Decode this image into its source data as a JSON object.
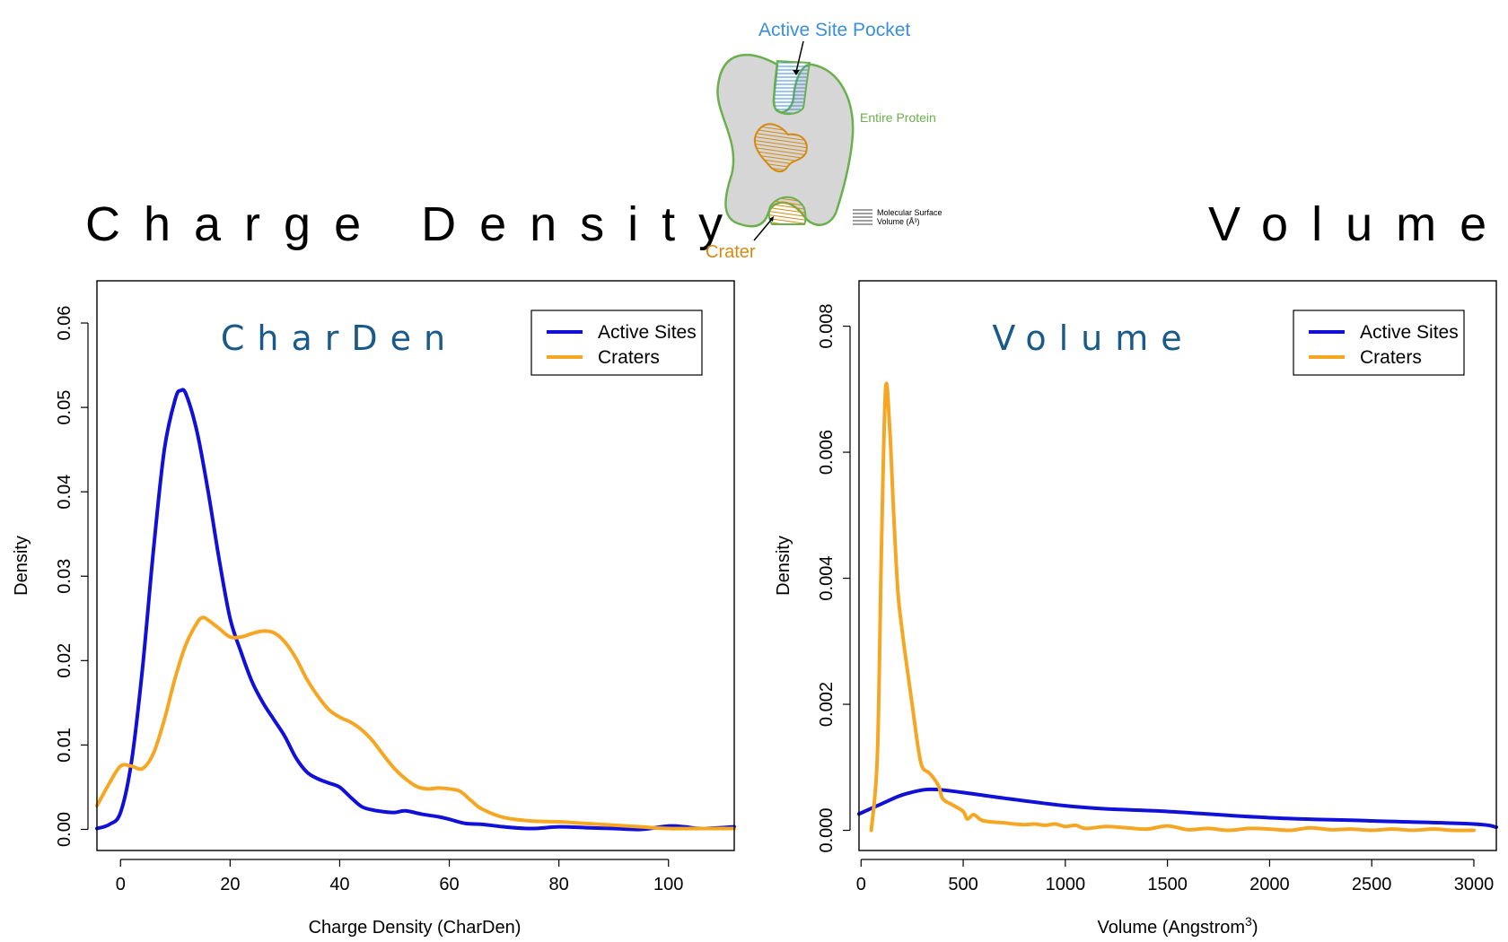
{
  "titles": {
    "left": "Charge Density",
    "right": "Volume"
  },
  "diagram": {
    "active_site_label": "Active Site Pocket",
    "protein_label": "Entire Protein",
    "crater_label": "Crater",
    "key_label_line1": "Molecular Surface",
    "key_label_line2": "Volume (Å³)",
    "colors": {
      "active_site": "#3a8fd8",
      "protein": "#6ab04c",
      "crater": "#d68a10",
      "body": "#d6d6d6"
    }
  },
  "colors": {
    "active_sites": "#1010d8",
    "craters": "#f5a623"
  },
  "chart_data": [
    {
      "type": "line",
      "inset_title": "CharDen",
      "xlabel": "Charge Density (CharDen)",
      "ylabel": "Density",
      "xlim": [
        -4.3,
        112
      ],
      "ylim": [
        -0.0025,
        0.065
      ],
      "xticks": [
        0,
        20,
        40,
        60,
        80,
        100
      ],
      "yticks": [
        0.0,
        0.01,
        0.02,
        0.03,
        0.04,
        0.05,
        0.06
      ],
      "ytick_labels": [
        "0.00",
        "0.01",
        "0.02",
        "0.03",
        "0.04",
        "0.05",
        "0.06"
      ],
      "legend": {
        "position": "top-right",
        "entries": [
          "Active Sites",
          "Craters"
        ]
      },
      "series": [
        {
          "name": "Active Sites",
          "x": [
            -4.3,
            -2,
            0,
            2,
            4,
            6,
            8,
            10,
            11,
            12,
            14,
            16,
            18,
            20,
            22,
            24,
            26,
            28,
            30,
            32,
            34,
            36,
            38,
            40,
            42,
            44,
            46,
            48,
            50,
            52,
            55,
            58,
            60,
            63,
            66,
            70,
            75,
            80,
            85,
            90,
            95,
            100,
            103,
            106,
            112
          ],
          "y": [
            0.0001,
            0.0006,
            0.002,
            0.008,
            0.019,
            0.033,
            0.045,
            0.051,
            0.052,
            0.0515,
            0.047,
            0.04,
            0.032,
            0.025,
            0.021,
            0.0175,
            0.015,
            0.013,
            0.011,
            0.0085,
            0.0068,
            0.006,
            0.0055,
            0.005,
            0.0038,
            0.0027,
            0.0023,
            0.0021,
            0.002,
            0.0022,
            0.0018,
            0.0015,
            0.0012,
            0.0007,
            0.0006,
            0.0003,
            0.0001,
            0.0003,
            0.0002,
            0.0001,
            0.0,
            0.0004,
            0.0003,
            0.0001,
            0.0003
          ]
        },
        {
          "name": "Craters",
          "x": [
            -4.3,
            -2,
            0,
            2,
            4,
            6,
            8,
            10,
            12,
            14,
            15,
            16,
            18,
            20,
            22,
            24,
            26,
            28,
            30,
            32,
            34,
            36,
            38,
            40,
            42,
            44,
            46,
            48,
            50,
            52,
            54,
            56,
            58,
            60,
            62,
            64,
            66,
            70,
            75,
            80,
            85,
            90,
            95,
            100,
            105,
            112
          ],
          "y": [
            0.0028,
            0.0055,
            0.0075,
            0.0075,
            0.0072,
            0.009,
            0.013,
            0.018,
            0.022,
            0.0245,
            0.0251,
            0.0248,
            0.0238,
            0.0228,
            0.0228,
            0.0232,
            0.0235,
            0.0233,
            0.0222,
            0.0203,
            0.0178,
            0.0158,
            0.0142,
            0.0133,
            0.0127,
            0.0118,
            0.0105,
            0.0088,
            0.0072,
            0.006,
            0.0051,
            0.0048,
            0.0049,
            0.0048,
            0.0045,
            0.0034,
            0.0024,
            0.0014,
            0.001,
            0.0009,
            0.0007,
            0.0005,
            0.0003,
            0.0001,
            0.0001,
            0.0001
          ]
        }
      ]
    },
    {
      "type": "line",
      "inset_title": "Volume",
      "xlabel": "Volume (Angstrom",
      "xlabel_superscript": "3",
      "xlabel_suffix": ")",
      "ylabel": "Density",
      "xlim": [
        -10,
        3110
      ],
      "ylim": [
        -0.00032,
        0.00872
      ],
      "xticks": [
        0,
        500,
        1000,
        1500,
        2000,
        2500,
        3000
      ],
      "yticks": [
        0.0,
        0.002,
        0.004,
        0.006,
        0.008
      ],
      "ytick_labels": [
        "0.000",
        "0.002",
        "0.004",
        "0.006",
        "0.008"
      ],
      "legend": {
        "position": "top-right",
        "entries": [
          "Active Sites",
          "Craters"
        ]
      },
      "series": [
        {
          "name": "Active Sites",
          "x": [
            -10,
            100,
            200,
            300,
            350,
            400,
            500,
            700,
            1000,
            1200,
            1500,
            2000,
            2500,
            3000,
            3110
          ],
          "y": [
            0.00026,
            0.00042,
            0.00056,
            0.00064,
            0.00065,
            0.00064,
            0.0006,
            0.00051,
            0.00039,
            0.00034,
            0.0003,
            0.0002,
            0.00015,
            0.0001,
            5e-05
          ]
        },
        {
          "name": "Craters",
          "x": [
            50,
            80,
            100,
            120,
            140,
            160,
            180,
            200,
            220,
            250,
            280,
            300,
            330,
            350,
            380,
            400,
            450,
            500,
            520,
            550,
            580,
            600,
            650,
            700,
            750,
            800,
            850,
            900,
            950,
            1000,
            1050,
            1100,
            1200,
            1300,
            1400,
            1500,
            1600,
            1700,
            1800,
            1900,
            2000,
            2100,
            2200,
            2300,
            2400,
            2500,
            2600,
            2700,
            2800,
            2900,
            3000
          ],
          "y": [
            0.0,
            0.0012,
            0.0045,
            0.007,
            0.0064,
            0.005,
            0.0038,
            0.0032,
            0.0027,
            0.002,
            0.0013,
            0.001,
            0.00092,
            0.00085,
            0.0007,
            0.0005,
            0.0004,
            0.0003,
            0.00018,
            0.00025,
            0.00018,
            0.00015,
            0.00013,
            0.00012,
            0.0001,
            9e-05,
            0.0001,
            8e-05,
            0.0001,
            6e-05,
            8e-05,
            3e-05,
            6e-05,
            4e-05,
            2e-05,
            7e-05,
            1e-05,
            3e-05,
            0.0,
            3e-05,
            2e-05,
            0.0,
            4e-05,
            1e-05,
            2e-05,
            0.0,
            2e-05,
            0.0,
            2e-05,
            0.0,
            0.0
          ]
        }
      ]
    }
  ]
}
